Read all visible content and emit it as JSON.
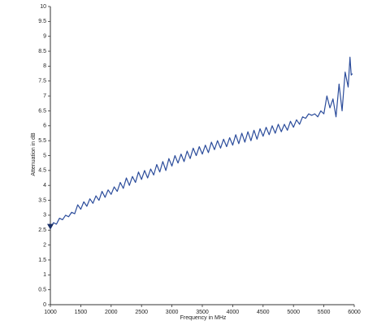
{
  "chart_data": {
    "type": "line",
    "x_label": "Frequency in MHz",
    "y_label": "Attenuation in dB",
    "color": "#2b4c9b",
    "grid": false,
    "xlim": [
      1000,
      6000
    ],
    "ylim": [
      0,
      10
    ],
    "xticks": [
      1000,
      1500,
      2000,
      2500,
      3000,
      3500,
      4000,
      4500,
      5000,
      5500,
      6000
    ],
    "yticks": [
      0,
      0.5,
      1,
      1.5,
      2,
      2.5,
      3,
      3.5,
      4,
      4.5,
      5,
      5.5,
      6,
      6.5,
      7,
      7.5,
      8,
      8.5,
      9,
      9.5,
      10
    ],
    "marker": {
      "x": 1000,
      "y": 2.6
    },
    "x": [
      1000,
      1050,
      1100,
      1150,
      1200,
      1250,
      1300,
      1350,
      1400,
      1450,
      1500,
      1550,
      1600,
      1650,
      1700,
      1750,
      1800,
      1850,
      1900,
      1950,
      2000,
      2050,
      2100,
      2150,
      2200,
      2250,
      2300,
      2350,
      2400,
      2450,
      2500,
      2550,
      2600,
      2650,
      2700,
      2750,
      2800,
      2850,
      2900,
      2950,
      3000,
      3050,
      3100,
      3150,
      3200,
      3250,
      3300,
      3350,
      3400,
      3450,
      3500,
      3550,
      3600,
      3650,
      3700,
      3750,
      3800,
      3850,
      3900,
      3950,
      4000,
      4050,
      4100,
      4150,
      4200,
      4250,
      4300,
      4350,
      4400,
      4450,
      4500,
      4550,
      4600,
      4650,
      4700,
      4750,
      4800,
      4850,
      4900,
      4950,
      5000,
      5050,
      5100,
      5150,
      5200,
      5250,
      5300,
      5350,
      5400,
      5450,
      5500,
      5550,
      5600,
      5650,
      5700,
      5750,
      5800,
      5850,
      5900,
      5930,
      5950,
      5970
    ],
    "values": [
      2.55,
      2.75,
      2.7,
      2.9,
      2.85,
      3.0,
      2.95,
      3.1,
      3.05,
      3.35,
      3.2,
      3.45,
      3.3,
      3.55,
      3.4,
      3.65,
      3.5,
      3.8,
      3.6,
      3.85,
      3.7,
      3.95,
      3.8,
      4.1,
      3.9,
      4.25,
      4.0,
      4.3,
      4.1,
      4.45,
      4.2,
      4.5,
      4.25,
      4.55,
      4.35,
      4.7,
      4.45,
      4.8,
      4.5,
      4.9,
      4.65,
      5.0,
      4.75,
      5.05,
      4.8,
      5.15,
      4.9,
      5.25,
      5.0,
      5.3,
      5.05,
      5.35,
      5.1,
      5.45,
      5.2,
      5.5,
      5.25,
      5.55,
      5.3,
      5.6,
      5.35,
      5.7,
      5.4,
      5.75,
      5.45,
      5.8,
      5.5,
      5.85,
      5.55,
      5.9,
      5.65,
      5.95,
      5.7,
      6.0,
      5.75,
      6.05,
      5.8,
      6.05,
      5.85,
      6.15,
      5.95,
      6.2,
      6.05,
      6.3,
      6.25,
      6.4,
      6.35,
      6.4,
      6.3,
      6.5,
      6.4,
      7.0,
      6.6,
      6.9,
      6.3,
      7.4,
      6.5,
      7.8,
      7.3,
      8.3,
      7.7,
      7.75
    ]
  }
}
